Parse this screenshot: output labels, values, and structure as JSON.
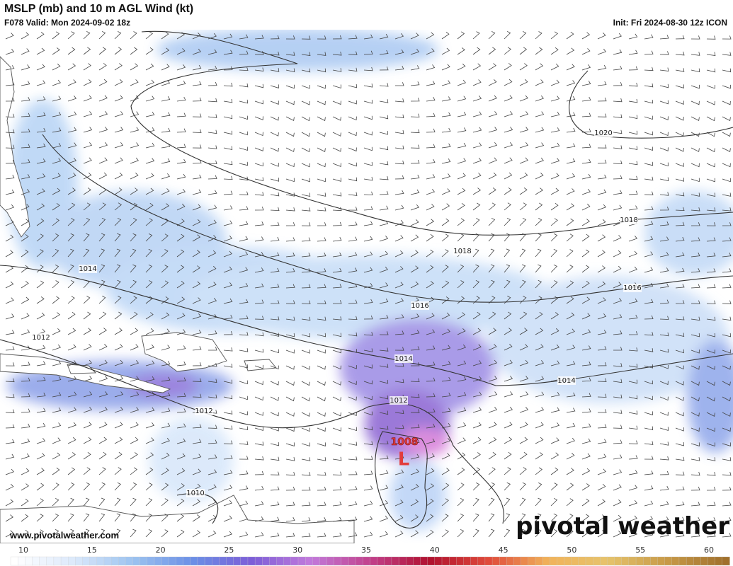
{
  "header": {
    "title": "MSLP (mb) and 10 m AGL Wind (kt)",
    "valid": "F078 Valid: Mon 2024-09-02 18z",
    "init": "Init: Fri 2024-08-30 12z ICON"
  },
  "contours": [
    {
      "label": "1020"
    },
    {
      "label": "1018"
    },
    {
      "label": "1018"
    },
    {
      "label": "1016"
    },
    {
      "label": "1016"
    },
    {
      "label": "1014"
    },
    {
      "label": "1014"
    },
    {
      "label": "1014"
    },
    {
      "label": "1012"
    },
    {
      "label": "1012"
    },
    {
      "label": "1012"
    },
    {
      "label": "1010"
    }
  ],
  "low": {
    "pressure": "1008",
    "symbol": "L"
  },
  "colorbar": {
    "ticks": [
      10,
      15,
      20,
      25,
      30,
      35,
      40,
      45,
      50,
      55,
      60
    ]
  },
  "footer": {
    "url": "www.pivotalweather.com",
    "brand": "pivotal weather"
  }
}
